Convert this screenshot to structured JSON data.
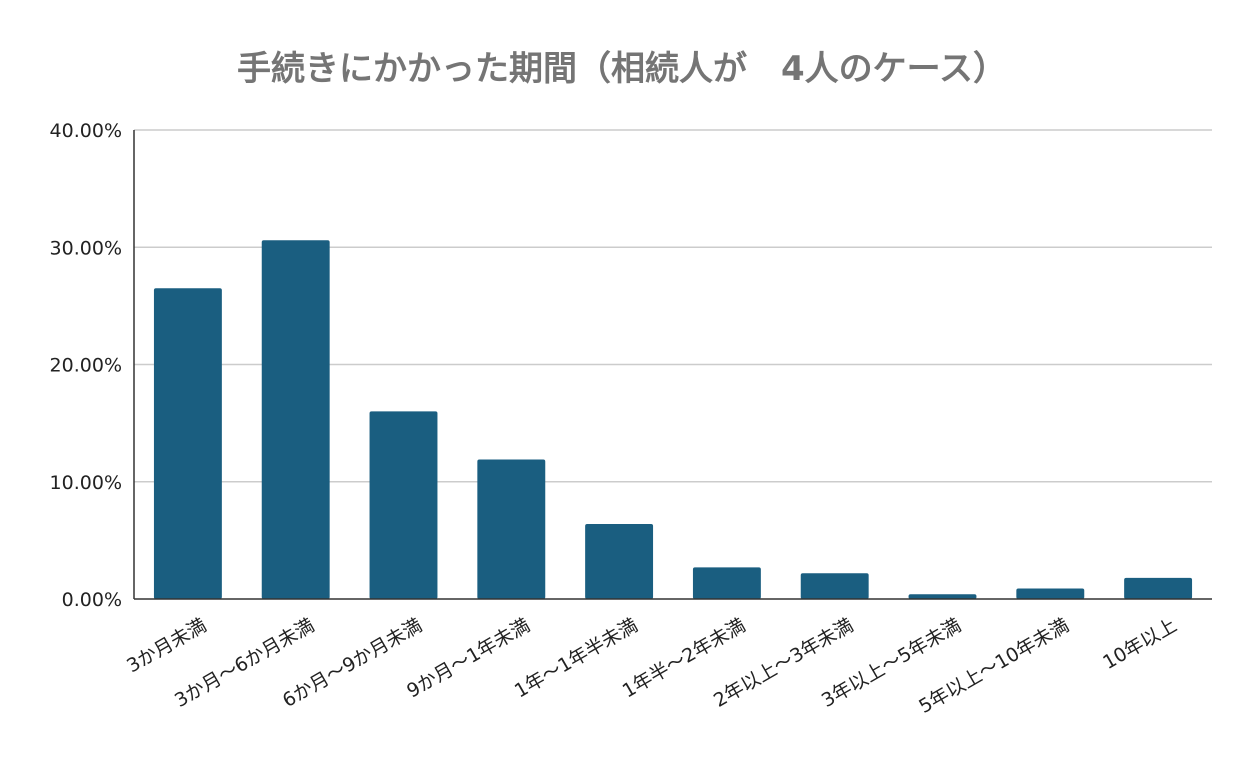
{
  "chart_data": {
    "type": "bar",
    "title": "手続きにかかった期間（相続人が　4人のケース）",
    "xlabel": "",
    "ylabel": "",
    "categories": [
      "3か月未満",
      "3か月〜6か月未満",
      "6か月〜9か月未満",
      "9か月〜1年未満",
      "1年〜1年半未満",
      "1年半〜2年未満",
      "2年以上〜3年未満",
      "3年以上〜5年未満",
      "5年以上〜10年未満",
      "10年以上"
    ],
    "values": [
      26.5,
      30.6,
      16.0,
      11.9,
      6.4,
      2.7,
      2.2,
      0.4,
      0.9,
      1.8
    ],
    "ylim": [
      0,
      40
    ],
    "yticks": [
      0,
      10,
      20,
      30,
      40
    ],
    "ytick_labels": [
      "0.00%",
      "10.00%",
      "20.00%",
      "30.00%",
      "40.00%"
    ],
    "grid": true,
    "legend": "none",
    "bar_color": "#1a5e80",
    "title_color": "#757575"
  }
}
